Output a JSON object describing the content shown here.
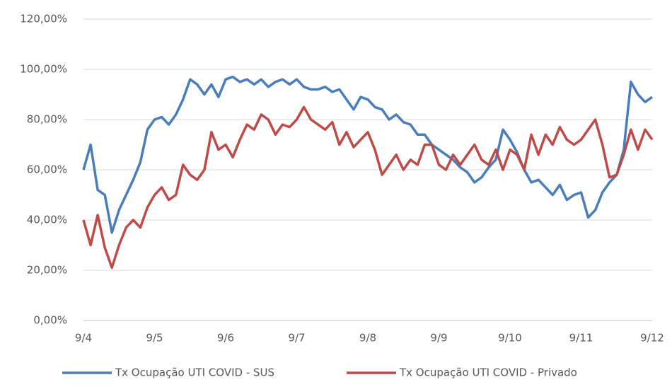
{
  "chart_data": {
    "type": "line",
    "categories": [
      "9/4",
      null,
      null,
      null,
      null,
      null,
      null,
      null,
      null,
      null,
      "9/5",
      null,
      null,
      null,
      null,
      null,
      null,
      null,
      null,
      null,
      "9/6",
      null,
      null,
      null,
      null,
      null,
      null,
      null,
      null,
      null,
      "9/7",
      null,
      null,
      null,
      null,
      null,
      null,
      null,
      null,
      null,
      "9/8",
      null,
      null,
      null,
      null,
      null,
      null,
      null,
      null,
      null,
      "9/9",
      null,
      null,
      null,
      null,
      null,
      null,
      null,
      null,
      null,
      "9/10",
      null,
      null,
      null,
      null,
      null,
      null,
      null,
      null,
      null,
      "9/11",
      null,
      null,
      null,
      null,
      null,
      null,
      null,
      null,
      null,
      "9/12"
    ],
    "series": [
      {
        "name": "Tx Ocupação UTI COVID - SUS",
        "color": "#4a7ebb",
        "values": [
          60,
          70,
          52,
          50,
          35,
          44,
          50,
          56,
          63,
          76,
          80,
          81,
          78,
          82,
          88,
          96,
          94,
          90,
          94,
          89,
          96,
          97,
          95,
          96,
          94,
          96,
          93,
          95,
          96,
          94,
          96,
          93,
          92,
          92,
          93,
          91,
          92,
          88,
          84,
          89,
          88,
          85,
          84,
          80,
          82,
          79,
          78,
          74,
          74,
          70,
          68,
          66,
          64,
          61,
          59,
          55,
          57,
          61,
          64,
          76,
          72,
          67,
          60,
          55,
          56,
          53,
          50,
          54,
          48,
          50,
          51,
          41,
          44,
          51,
          55,
          58,
          68,
          95,
          90,
          87,
          89
        ]
      },
      {
        "name": "Tx Ocupação UTI COVID - Privado",
        "color": "#be4b48",
        "values": [
          40,
          30,
          42,
          29,
          21,
          30,
          37,
          40,
          37,
          45,
          50,
          53,
          48,
          50,
          62,
          58,
          56,
          60,
          75,
          68,
          70,
          65,
          72,
          78,
          76,
          82,
          80,
          74,
          78,
          77,
          80,
          85,
          80,
          78,
          76,
          79,
          70,
          75,
          69,
          72,
          75,
          68,
          58,
          62,
          66,
          60,
          64,
          62,
          70,
          70,
          62,
          60,
          66,
          62,
          66,
          70,
          64,
          62,
          68,
          60,
          68,
          66,
          60,
          74,
          66,
          74,
          70,
          77,
          72,
          70,
          72,
          76,
          80,
          70,
          57,
          58,
          66,
          76,
          68,
          76,
          72
        ]
      }
    ],
    "ylim": [
      0,
      120
    ],
    "yticks": [
      {
        "value": 0,
        "label": "0,00%"
      },
      {
        "value": 20,
        "label": "20,00%"
      },
      {
        "value": 40,
        "label": "40,00%"
      },
      {
        "value": 60,
        "label": "60,00%"
      },
      {
        "value": 80,
        "label": "80,00%"
      },
      {
        "value": 100,
        "label": "100,00%"
      },
      {
        "value": 120,
        "label": "120,00%"
      }
    ],
    "grid": true,
    "legend": "bottom"
  }
}
